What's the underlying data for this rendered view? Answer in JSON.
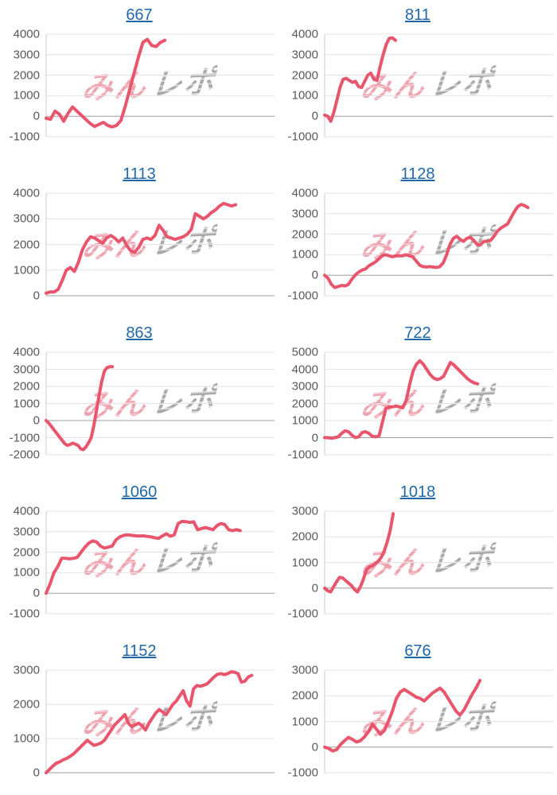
{
  "watermark": {
    "pink": "みん",
    "gray": "レポ"
  },
  "colors": {
    "line": "#e8566e",
    "title_link": "#2268a8",
    "gridline": "#e3e3e3",
    "zero_line": "#9e9e9e",
    "axis_line": "#cccccc",
    "tick_label": "#595959",
    "watermark_pink": "#eda4b0",
    "watermark_gray": "#a9a9a9"
  },
  "chart_data": [
    {
      "type": "line",
      "title": "667",
      "xlabel": "",
      "ylabel": "",
      "ylim": [
        -1000,
        4000
      ],
      "yticks": [
        "4000",
        "3000",
        "2000",
        "1000",
        "0",
        "-1000"
      ],
      "x_extent": 0.52,
      "values": [
        -100,
        -150,
        250,
        100,
        -250,
        150,
        450,
        250,
        50,
        -150,
        -350,
        -500,
        -400,
        -300,
        -450,
        -520,
        -450,
        -200,
        500,
        1300,
        2100,
        2900,
        3600,
        3750,
        3450,
        3400,
        3600,
        3700
      ]
    },
    {
      "type": "line",
      "title": "811",
      "xlabel": "",
      "ylabel": "",
      "ylim": [
        -1000,
        4000
      ],
      "yticks": [
        "4000",
        "3000",
        "2000",
        "1000",
        "0",
        "-1000"
      ],
      "x_extent": 0.31,
      "values": [
        50,
        0,
        -250,
        200,
        800,
        1400,
        1800,
        1850,
        1750,
        1650,
        1700,
        1450,
        1400,
        1700,
        2000,
        2100,
        1800,
        1750,
        2400,
        3000,
        3500,
        3800,
        3820,
        3700
      ]
    },
    {
      "type": "line",
      "title": "1113",
      "xlabel": "",
      "ylabel": "",
      "ylim": [
        0,
        4000
      ],
      "yticks": [
        "4000",
        "3000",
        "2000",
        "1000",
        "0"
      ],
      "x_extent": 0.83,
      "values": [
        100,
        150,
        150,
        250,
        600,
        1000,
        1100,
        950,
        1300,
        1800,
        2100,
        2300,
        2250,
        2150,
        2050,
        2250,
        2350,
        2250,
        2100,
        2250,
        1950,
        1750,
        1700,
        1900,
        2200,
        2250,
        2200,
        2350,
        2750,
        2550,
        2300,
        2250,
        2200,
        2250,
        2300,
        2400,
        2600,
        3200,
        3100,
        3000,
        3100,
        3250,
        3350,
        3500,
        3600,
        3550,
        3500,
        3550
      ]
    },
    {
      "type": "line",
      "title": "1128",
      "xlabel": "",
      "ylabel": "",
      "ylim": [
        -1000,
        4000
      ],
      "yticks": [
        "4000",
        "3000",
        "2000",
        "1000",
        "0",
        "-1000"
      ],
      "x_extent": 0.89,
      "values": [
        0,
        -150,
        -450,
        -600,
        -550,
        -500,
        -520,
        -450,
        -200,
        0,
        150,
        250,
        300,
        450,
        550,
        650,
        800,
        950,
        1000,
        950,
        900,
        950,
        950,
        950,
        1000,
        950,
        900,
        700,
        500,
        420,
        400,
        420,
        400,
        380,
        420,
        600,
        1000,
        1500,
        1800,
        1900,
        1750,
        1650,
        1800,
        1850,
        1700,
        1500,
        1480,
        1650,
        1650,
        1700,
        1900,
        2150,
        2300,
        2400,
        2500,
        2800,
        3100,
        3350,
        3450,
        3400,
        3300
      ]
    },
    {
      "type": "line",
      "title": "863",
      "xlabel": "",
      "ylabel": "",
      "ylim": [
        -2000,
        4000
      ],
      "yticks": [
        "4000",
        "3000",
        "2000",
        "1000",
        "0",
        "-1000",
        "-2000"
      ],
      "x_extent": 0.29,
      "values": [
        0,
        -150,
        -350,
        -550,
        -750,
        -950,
        -1150,
        -1350,
        -1450,
        -1400,
        -1320,
        -1380,
        -1450,
        -1650,
        -1700,
        -1550,
        -1300,
        -1000,
        -300,
        600,
        1500,
        2300,
        2900,
        3100,
        3150,
        3150
      ]
    },
    {
      "type": "line",
      "title": "722",
      "xlabel": "",
      "ylabel": "",
      "ylim": [
        -1000,
        5000
      ],
      "yticks": [
        "5000",
        "4000",
        "3000",
        "2000",
        "1000",
        "0",
        "-1000"
      ],
      "x_extent": 0.67,
      "values": [
        0,
        0,
        -30,
        0,
        50,
        250,
        400,
        350,
        150,
        0,
        50,
        300,
        350,
        250,
        80,
        50,
        100,
        900,
        1700,
        1800,
        1800,
        1850,
        1800,
        1750,
        2200,
        3100,
        3900,
        4300,
        4500,
        4300,
        4000,
        3700,
        3500,
        3400,
        3450,
        3600,
        4000,
        4400,
        4250,
        4050,
        3850,
        3650,
        3450,
        3300,
        3200,
        3150
      ]
    },
    {
      "type": "line",
      "title": "1060",
      "xlabel": "",
      "ylabel": "",
      "ylim": [
        -1000,
        4000
      ],
      "yticks": [
        "4000",
        "3000",
        "2000",
        "1000",
        "0",
        "-1000"
      ],
      "x_extent": 0.85,
      "values": [
        0,
        450,
        1000,
        1300,
        1700,
        1700,
        1680,
        1700,
        1750,
        2000,
        2250,
        2450,
        2550,
        2500,
        2300,
        2200,
        2250,
        2300,
        2600,
        2750,
        2820,
        2850,
        2820,
        2800,
        2790,
        2800,
        2770,
        2750,
        2700,
        2680,
        2800,
        2900,
        2780,
        2850,
        3400,
        3500,
        3490,
        3450,
        3480,
        3100,
        3150,
        3200,
        3150,
        3100,
        3300,
        3400,
        3350,
        3100,
        3050,
        3100,
        3050
      ]
    },
    {
      "type": "line",
      "title": "1018",
      "xlabel": "",
      "ylabel": "",
      "ylim": [
        -1000,
        3000
      ],
      "yticks": [
        "3000",
        "2000",
        "1000",
        "0",
        "-1000"
      ],
      "x_extent": 0.3,
      "values": [
        0,
        -100,
        -150,
        50,
        250,
        420,
        400,
        300,
        200,
        100,
        -50,
        -150,
        50,
        350,
        700,
        820,
        880,
        950,
        1050,
        1200,
        1450,
        1800,
        2250,
        2900
      ]
    },
    {
      "type": "line",
      "title": "1152",
      "xlabel": "",
      "ylabel": "",
      "ylim": [
        0,
        3000
      ],
      "yticks": [
        "3000",
        "2000",
        "1000",
        "0"
      ],
      "x_extent": 0.9,
      "values": [
        0,
        100,
        200,
        280,
        320,
        380,
        420,
        480,
        550,
        650,
        750,
        850,
        950,
        870,
        800,
        830,
        870,
        950,
        1100,
        1250,
        1400,
        1500,
        1600,
        1700,
        1450,
        1350,
        1400,
        1450,
        1380,
        1250,
        1450,
        1600,
        1750,
        1850,
        1780,
        1700,
        1850,
        2000,
        2100,
        2250,
        2400,
        2100,
        1950,
        2450,
        2550,
        2530,
        2560,
        2600,
        2700,
        2800,
        2880,
        2900,
        2870,
        2900,
        2950,
        2940,
        2900,
        2650,
        2680,
        2800,
        2850
      ]
    },
    {
      "type": "line",
      "title": "676",
      "xlabel": "",
      "ylabel": "",
      "ylim": [
        -1000,
        3000
      ],
      "yticks": [
        "3000",
        "2000",
        "1000",
        "0",
        "-1000"
      ],
      "x_extent": 0.68,
      "values": [
        0,
        -50,
        -150,
        -100,
        100,
        250,
        380,
        300,
        200,
        250,
        400,
        600,
        900,
        700,
        500,
        650,
        1000,
        1400,
        1900,
        2150,
        2250,
        2150,
        2050,
        1950,
        1900,
        1800,
        1950,
        2100,
        2200,
        2300,
        2150,
        1900,
        1650,
        1400,
        1250,
        1450,
        1750,
        2050,
        2300,
        2600
      ]
    }
  ]
}
